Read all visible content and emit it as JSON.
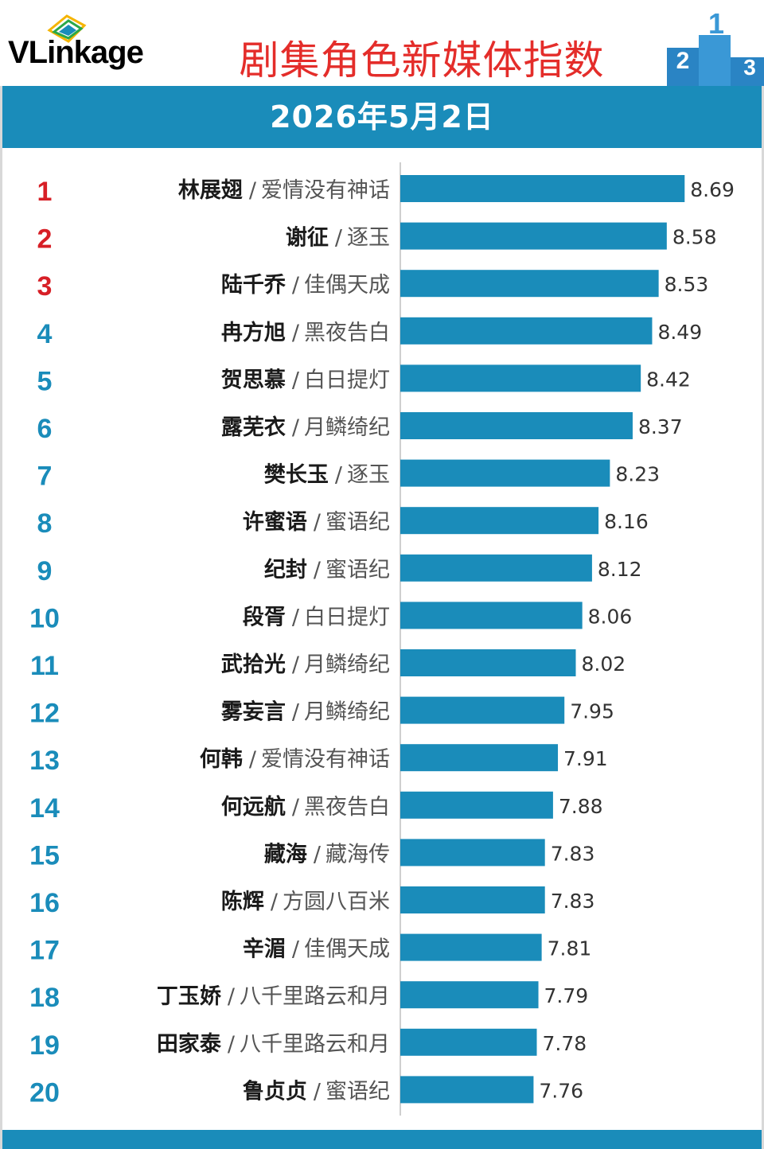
{
  "header": {
    "logo_text": "VLinkage",
    "title": "剧集角色新媒体指数",
    "podium_numbers": [
      "2",
      "1",
      "3"
    ]
  },
  "date": "2026年5月2日",
  "colors": {
    "bar": "#1a8cba",
    "rank_top3": "#d71f26",
    "rank_other": "#1a8cba",
    "title": "#e42d2a"
  },
  "chart_data": {
    "type": "bar",
    "orientation": "horizontal",
    "title": "剧集角色新媒体指数",
    "subtitle": "2026年5月2日",
    "xlim": [
      6.94,
      8.86
    ],
    "categories": [
      {
        "rank": "1",
        "name": "林展翅",
        "drama": "爱情没有神话"
      },
      {
        "rank": "2",
        "name": "谢征",
        "drama": "逐玉"
      },
      {
        "rank": "3",
        "name": "陆千乔",
        "drama": "佳偶天成"
      },
      {
        "rank": "4",
        "name": "冉方旭",
        "drama": "黑夜告白"
      },
      {
        "rank": "5",
        "name": "贺思慕",
        "drama": "白日提灯"
      },
      {
        "rank": "6",
        "name": "露芜衣",
        "drama": "月鳞绮纪"
      },
      {
        "rank": "7",
        "name": "樊长玉",
        "drama": "逐玉"
      },
      {
        "rank": "8",
        "name": "许蜜语",
        "drama": "蜜语纪"
      },
      {
        "rank": "9",
        "name": "纪封",
        "drama": "蜜语纪"
      },
      {
        "rank": "10",
        "name": "段胥",
        "drama": "白日提灯"
      },
      {
        "rank": "11",
        "name": "武拾光",
        "drama": "月鳞绮纪"
      },
      {
        "rank": "12",
        "name": "雾妄言",
        "drama": "月鳞绮纪"
      },
      {
        "rank": "13",
        "name": "何韩",
        "drama": "爱情没有神话"
      },
      {
        "rank": "14",
        "name": "何远航",
        "drama": "黑夜告白"
      },
      {
        "rank": "15",
        "name": "藏海",
        "drama": "藏海传"
      },
      {
        "rank": "16",
        "name": "陈辉",
        "drama": "方圆八百米"
      },
      {
        "rank": "17",
        "name": "辛湄",
        "drama": "佳偶天成"
      },
      {
        "rank": "18",
        "name": "丁玉娇",
        "drama": "八千里路云和月"
      },
      {
        "rank": "19",
        "name": "田家泰",
        "drama": "八千里路云和月"
      },
      {
        "rank": "20",
        "name": "鲁贞贞",
        "drama": "蜜语纪"
      }
    ],
    "values": [
      8.69,
      8.58,
      8.53,
      8.49,
      8.42,
      8.37,
      8.23,
      8.16,
      8.12,
      8.06,
      8.02,
      7.95,
      7.91,
      7.88,
      7.83,
      7.83,
      7.81,
      7.79,
      7.78,
      7.76
    ]
  }
}
